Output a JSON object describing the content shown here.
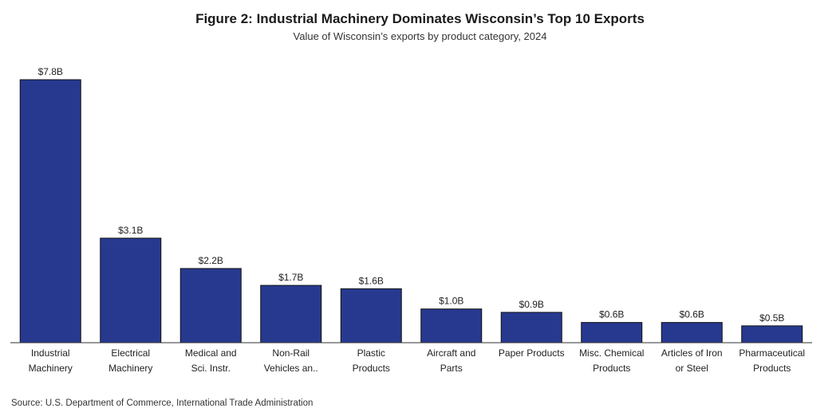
{
  "chart_data": {
    "type": "bar",
    "title": "Figure 2: Industrial Machinery Dominates Wisconsin’s Top 10 Exports",
    "subtitle": "Value of Wisconsin’s exports by product category, 2024",
    "categories": [
      [
        "Industrial",
        "Machinery"
      ],
      [
        "Electrical",
        "Machinery"
      ],
      [
        "Medical and",
        "Sci. Instr."
      ],
      [
        "Non-Rail",
        "Vehicles an.."
      ],
      [
        "Plastic",
        "Products"
      ],
      [
        "Aircraft and",
        "Parts"
      ],
      [
        "Paper Products"
      ],
      [
        "Misc. Chemical",
        "Products"
      ],
      [
        "Articles of Iron",
        "or Steel"
      ],
      [
        "Pharmaceutical",
        "Products"
      ]
    ],
    "values": [
      7.8,
      3.1,
      2.2,
      1.7,
      1.6,
      1.0,
      0.9,
      0.6,
      0.6,
      0.5
    ],
    "data_labels": [
      "$7.8B",
      "$3.1B",
      "$2.2B",
      "$1.7B",
      "$1.6B",
      "$1.0B",
      "$0.9B",
      "$0.6B",
      "$0.6B",
      "$0.5B"
    ],
    "xlabel": "",
    "ylabel": "",
    "ylim": [
      0,
      7.8
    ],
    "grid": false,
    "bar_color": "#27398f"
  },
  "source": "Source: U.S. Department of Commerce, International Trade Administration"
}
